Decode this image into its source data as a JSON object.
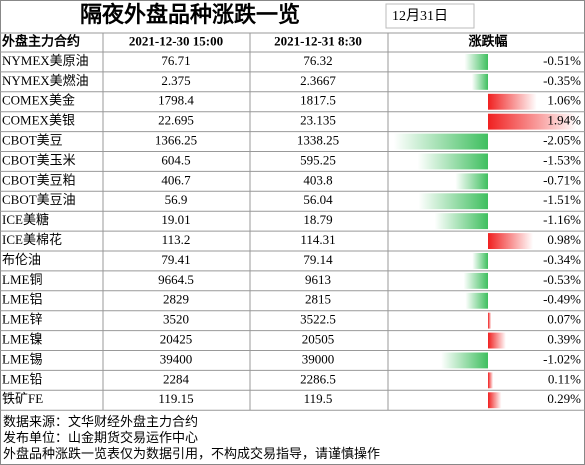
{
  "header": {
    "title": "隔夜外盘品种涨跌一览",
    "date": "12月31日"
  },
  "table": {
    "columns": [
      "外盘主力合约",
      "2021-12-30 15:00",
      "2021-12-31 8:30",
      "涨跌幅"
    ],
    "rows": [
      {
        "name": "NYMEX美原油",
        "prev": "76.71",
        "curr": "76.32",
        "change": {
          "value": -0.51,
          "label": "-0.51%"
        }
      },
      {
        "name": "NYMEX美燃油",
        "prev": "2.375",
        "curr": "2.3667",
        "change": {
          "value": -0.35,
          "label": "-0.35%"
        }
      },
      {
        "name": "COMEX美金",
        "prev": "1798.4",
        "curr": "1817.5",
        "change": {
          "value": 1.06,
          "label": "1.06%"
        }
      },
      {
        "name": "COMEX美银",
        "prev": "22.695",
        "curr": "23.135",
        "change": {
          "value": 1.94,
          "label": "1.94%"
        }
      },
      {
        "name": "CBOT美豆",
        "prev": "1366.25",
        "curr": "1338.25",
        "change": {
          "value": -2.05,
          "label": "-2.05%"
        }
      },
      {
        "name": "CBOT美玉米",
        "prev": "604.5",
        "curr": "595.25",
        "change": {
          "value": -1.53,
          "label": "-1.53%"
        }
      },
      {
        "name": "CBOT美豆粕",
        "prev": "406.7",
        "curr": "403.8",
        "change": {
          "value": -0.71,
          "label": "-0.71%"
        }
      },
      {
        "name": "CBOT美豆油",
        "prev": "56.9",
        "curr": "56.04",
        "change": {
          "value": -1.51,
          "label": "-1.51%"
        }
      },
      {
        "name": "ICE美糖",
        "prev": "19.01",
        "curr": "18.79",
        "change": {
          "value": -1.16,
          "label": "-1.16%"
        }
      },
      {
        "name": "ICE美棉花",
        "prev": "113.2",
        "curr": "114.31",
        "change": {
          "value": 0.98,
          "label": "0.98%"
        }
      },
      {
        "name": "布伦油",
        "prev": "79.41",
        "curr": "79.14",
        "change": {
          "value": -0.34,
          "label": "-0.34%"
        }
      },
      {
        "name": "LME铜",
        "prev": "9664.5",
        "curr": "9613",
        "change": {
          "value": -0.53,
          "label": "-0.53%"
        }
      },
      {
        "name": "LME铝",
        "prev": "2829",
        "curr": "2815",
        "change": {
          "value": -0.49,
          "label": "-0.49%"
        }
      },
      {
        "name": "LME锌",
        "prev": "3520",
        "curr": "3522.5",
        "change": {
          "value": 0.07,
          "label": "0.07%"
        }
      },
      {
        "name": "LME镍",
        "prev": "20425",
        "curr": "20505",
        "change": {
          "value": 0.39,
          "label": "0.39%"
        }
      },
      {
        "name": "LME锡",
        "prev": "39400",
        "curr": "39000",
        "change": {
          "value": -1.02,
          "label": "-1.02%"
        }
      },
      {
        "name": "LME铅",
        "prev": "2284",
        "curr": "2286.5",
        "change": {
          "value": 0.11,
          "label": "0.11%"
        }
      },
      {
        "name": "铁矿FE",
        "prev": "119.15",
        "curr": "119.5",
        "change": {
          "value": 0.29,
          "label": "0.29%"
        }
      }
    ]
  },
  "footer": [
    "数据来源：文华财经外盘主力合约",
    "发布单位：山金期货交易运作中心",
    "外盘品种涨跌一览表仅为数据引用，不构成交易指导，请谨慎操作"
  ]
}
